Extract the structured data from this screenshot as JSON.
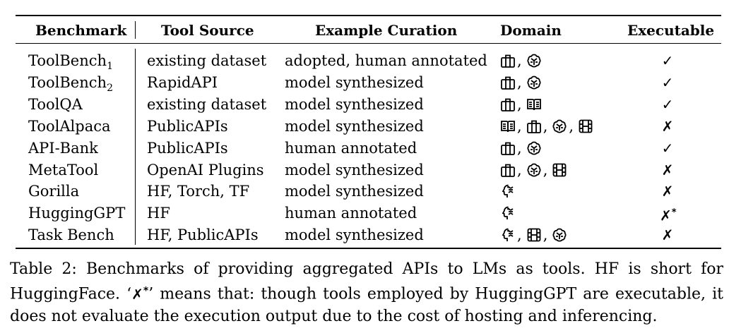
{
  "table": {
    "headers": [
      "Benchmark",
      "Tool Source",
      "Example Curation",
      "Domain",
      "Executable"
    ],
    "rows": [
      {
        "name": "ToolBench",
        "sub": "1",
        "source": "existing dataset",
        "curation": "adopted, human annotated",
        "domains": [
          "toolbox-icon",
          "brain-icon"
        ],
        "exec": "✓",
        "exec_sup": ""
      },
      {
        "name": "ToolBench",
        "sub": "2",
        "source": "RapidAPI",
        "curation": "model synthesized",
        "domains": [
          "toolbox-icon",
          "brain-icon"
        ],
        "exec": "✓",
        "exec_sup": ""
      },
      {
        "name": "ToolQA",
        "sub": "",
        "source": "existing dataset",
        "curation": "model synthesized",
        "domains": [
          "toolbox-icon",
          "book-icon"
        ],
        "exec": "✓",
        "exec_sup": ""
      },
      {
        "name": "ToolAlpaca",
        "sub": "",
        "source": "PublicAPIs",
        "curation": "model synthesized",
        "domains": [
          "book-icon",
          "toolbox-icon",
          "brain-icon",
          "film-icon"
        ],
        "exec": "✗",
        "exec_sup": ""
      },
      {
        "name": "API-Bank",
        "sub": "",
        "source": "PublicAPIs",
        "curation": "human annotated",
        "domains": [
          "toolbox-icon",
          "brain-icon"
        ],
        "exec": "✓",
        "exec_sup": ""
      },
      {
        "name": "MetaTool",
        "sub": "",
        "source": "OpenAI Plugins",
        "curation": "model synthesized",
        "domains": [
          "toolbox-icon",
          "brain-icon",
          "film-icon"
        ],
        "exec": "✗",
        "exec_sup": ""
      },
      {
        "name": "Gorilla",
        "sub": "",
        "source": "HF, Torch, TF",
        "curation": "model synthesized",
        "domains": [
          "head-icon"
        ],
        "exec": "✗",
        "exec_sup": ""
      },
      {
        "name": "HuggingGPT",
        "sub": "",
        "source": "HF",
        "curation": "human annotated",
        "domains": [
          "head-icon"
        ],
        "exec": "✗",
        "exec_sup": "*"
      },
      {
        "name": "Task Bench",
        "sub": "",
        "source": "HF, PublicAPIs",
        "curation": "model synthesized",
        "domains": [
          "head-icon",
          "film-icon",
          "brain-icon"
        ],
        "exec": "✗",
        "exec_sup": ""
      }
    ]
  },
  "caption": {
    "text_before": "Table 2: Benchmarks of providing aggregated APIs to LMs as tools. HF is short for HuggingFace. ‘",
    "mark": "✗",
    "mark_sup": "*",
    "text_after": "’ means that: though tools employed by HuggingGPT are executable, it does not evaluate the execution output due to the cost of hosting and inferencing."
  }
}
